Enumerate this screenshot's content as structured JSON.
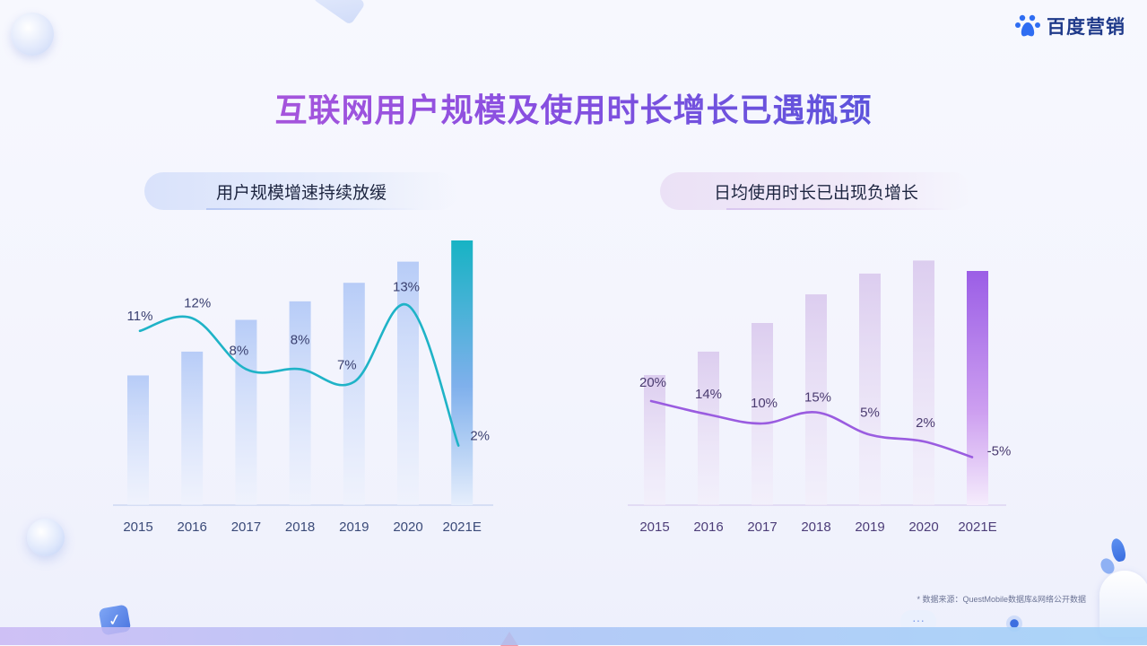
{
  "title": "互联网用户规模及使用时长增长已遇瓶颈",
  "logo": {
    "text": "百度营销",
    "icon": "baidu-paw-icon"
  },
  "source_note": "* 数据来源：QuestMobile数据库&网络公开数据",
  "colors": {
    "left_line": "#1fb3c7",
    "left_bar": "#9bb8f3",
    "left_highlight": "#17b3c4",
    "right_line": "#9a5ce0",
    "right_bar": "#d8c8ee",
    "right_highlight": "#9b5ee6"
  },
  "chart_data": [
    {
      "type": "bar",
      "title": "用户规模增速持续放缓",
      "categories": [
        "2015",
        "2016",
        "2017",
        "2018",
        "2019",
        "2020",
        "2021E"
      ],
      "series": [
        {
          "values": [
            0.49,
            0.58,
            0.7,
            0.77,
            0.84,
            0.92,
            1.0
          ]
        },
        {
          "values": [
            11,
            12,
            8,
            8,
            7,
            13,
            2
          ],
          "labels": [
            "11%",
            "12%",
            "8%",
            "8%",
            "7%",
            "13%",
            "2%"
          ]
        }
      ],
      "highlight": "2021E"
    },
    {
      "type": "bar",
      "title": "日均使用时长已出现负增长",
      "categories": [
        "2015",
        "2016",
        "2017",
        "2018",
        "2019",
        "2020",
        "2021E"
      ],
      "series": [
        {
          "values": [
            0.5,
            0.59,
            0.7,
            0.81,
            0.89,
            0.94,
            0.9
          ]
        },
        {
          "values": [
            20,
            14,
            10,
            15,
            5,
            2,
            -5
          ],
          "labels": [
            "20%",
            "14%",
            "10%",
            "15%",
            "5%",
            "2%",
            "-5%"
          ]
        }
      ],
      "highlight": "2021E"
    }
  ]
}
